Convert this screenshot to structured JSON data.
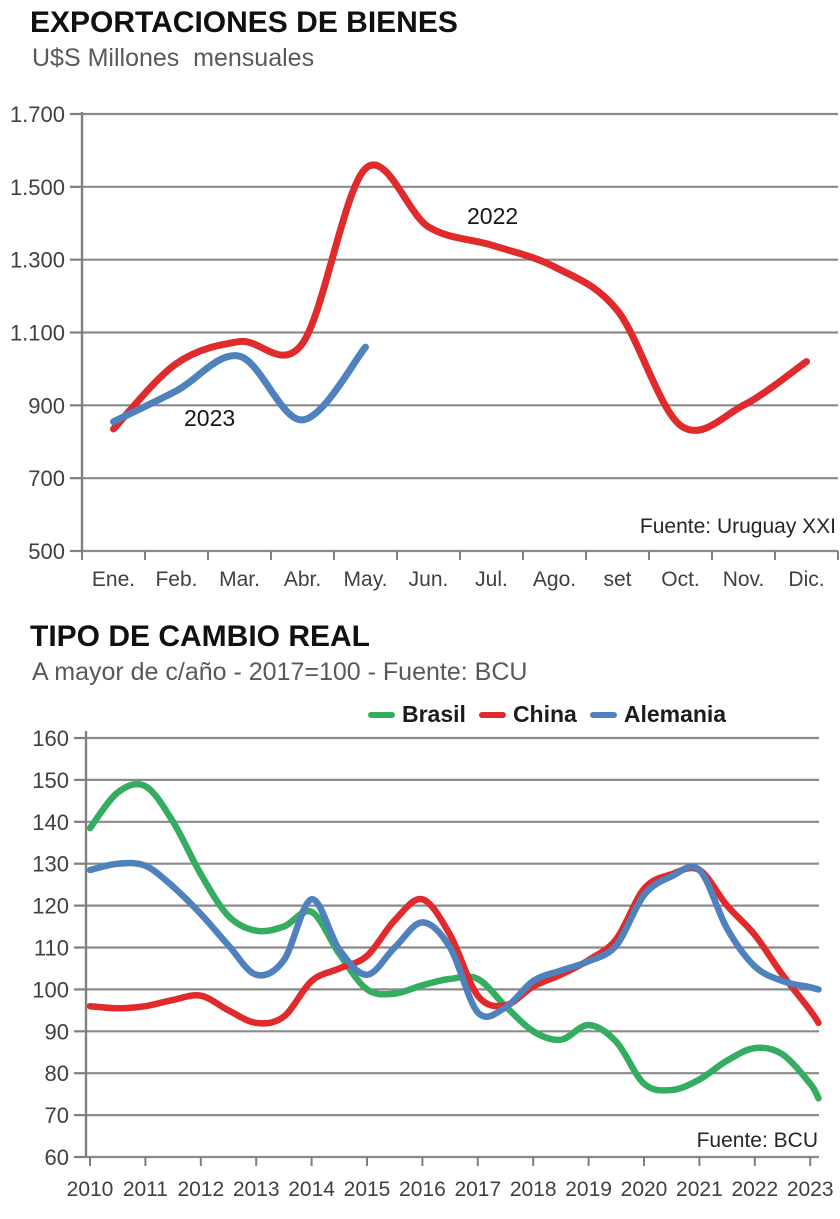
{
  "chart_data": [
    {
      "type": "line",
      "title": "EXPORTACIONES DE BIENES",
      "subtitle": "U$S Millones  mensuales",
      "source": "Fuente: Uruguay XXI",
      "categories": [
        "Ene.",
        "Feb.",
        "Mar.",
        "Abr.",
        "May.",
        "Jun.",
        "Jul.",
        "Ago.",
        "set",
        "Oct.",
        "Nov.",
        "Dic."
      ],
      "ylim": [
        500,
        1700
      ],
      "yticks": [
        1700,
        1500,
        1300,
        1100,
        900,
        700,
        500
      ],
      "ytick_labels": [
        "1.700",
        "1.500",
        "1.300",
        "1.100",
        "900",
        "700",
        "500"
      ],
      "grid": "horizontal",
      "legend_position": "none",
      "grid_color": "#8a8a8a",
      "axis_color": "#7f7f7f",
      "label_color": "#404040",
      "series": [
        {
          "name": "2022",
          "color": "#e02a2c",
          "values": [
            835,
            1015,
            1075,
            1070,
            1550,
            1390,
            1340,
            1280,
            1160,
            845,
            900,
            1020
          ]
        },
        {
          "name": "2023",
          "color": "#4f81bd",
          "values": [
            855,
            940,
            1035,
            860,
            1060,
            null,
            null,
            null,
            null,
            null,
            null,
            null
          ]
        }
      ],
      "annotations": [
        {
          "text": "2022",
          "near": "Jul",
          "value": 1420
        },
        {
          "text": "2023",
          "near": "Feb-Mar",
          "value": 860
        }
      ]
    },
    {
      "type": "line",
      "title": "TIPO DE CAMBIO REAL",
      "subtitle": "A mayor de c/año - 2017=100 - Fuente: BCU",
      "source": "Fuente: BCU",
      "x": [
        2010,
        2010.5,
        2011,
        2011.5,
        2012,
        2012.5,
        2013,
        2013.5,
        2014,
        2014.5,
        2015,
        2015.5,
        2016,
        2016.5,
        2017,
        2017.5,
        2018,
        2018.5,
        2019,
        2019.5,
        2020,
        2020.5,
        2021,
        2021.5,
        2022,
        2022.5,
        2023,
        2023.15
      ],
      "xticks": [
        2010,
        2011,
        2012,
        2013,
        2014,
        2015,
        2016,
        2017,
        2018,
        2019,
        2020,
        2021,
        2022,
        2023
      ],
      "ylim": [
        60,
        160
      ],
      "yticks": [
        160,
        150,
        140,
        130,
        120,
        110,
        100,
        90,
        80,
        70,
        60
      ],
      "grid": "horizontal",
      "legend_position": "top",
      "grid_color": "#8a8a8a",
      "axis_color": "#7f7f7f",
      "label_color": "#404040",
      "series": [
        {
          "name": "Brasil",
          "color": "#35ad61",
          "values": [
            138.5,
            147,
            148.5,
            140,
            127.5,
            117.5,
            114,
            115,
            118.5,
            108.5,
            100,
            99,
            101,
            102.5,
            102.5,
            96,
            90,
            88,
            91.5,
            87.5,
            77.5,
            76,
            78.5,
            83,
            86,
            84.5,
            77.5,
            74
          ]
        },
        {
          "name": "China",
          "color": "#e02a2c",
          "values": [
            96,
            95.5,
            96,
            97.5,
            98.5,
            95,
            92,
            93.5,
            102,
            105,
            108,
            116.5,
            121.5,
            113,
            98.5,
            96.2,
            100.7,
            103.5,
            107,
            112,
            124,
            127.5,
            128.5,
            120,
            113,
            103.5,
            95,
            92
          ]
        },
        {
          "name": "Alemania",
          "color": "#4f81bd",
          "values": [
            128.5,
            130,
            129.5,
            124.5,
            118,
            110.5,
            103.5,
            107,
            121.5,
            109.5,
            103.5,
            110,
            116,
            110,
            94.5,
            95.7,
            102,
            104.5,
            106.7,
            110.5,
            122.5,
            127,
            128.5,
            114.5,
            105.5,
            102,
            100.5,
            100
          ]
        }
      ]
    }
  ]
}
